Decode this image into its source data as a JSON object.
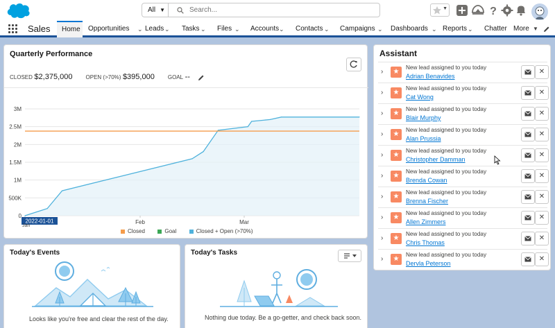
{
  "header": {
    "search_scope": "All",
    "search_placeholder": "Search..."
  },
  "nav": {
    "app_name": "Sales",
    "items": [
      {
        "label": "Home"
      },
      {
        "label": "Opportunities"
      },
      {
        "label": "Leads"
      },
      {
        "label": "Tasks"
      },
      {
        "label": "Files"
      },
      {
        "label": "Accounts"
      },
      {
        "label": "Contacts"
      },
      {
        "label": "Campaigns"
      },
      {
        "label": "Dashboards"
      },
      {
        "label": "Reports"
      },
      {
        "label": "Chatter"
      },
      {
        "label": "More"
      }
    ]
  },
  "performance": {
    "title": "Quarterly Performance",
    "closed_label": "CLOSED",
    "closed_value": "$2,375,000",
    "open_label": "OPEN (>70%)",
    "open_value": "$395,000",
    "goal_label": "GOAL",
    "goal_value": "--",
    "tooltip_date": "2022-01-01",
    "legend": [
      "Closed",
      "Goal",
      "Closed + Open (>70%)"
    ]
  },
  "chart_data": {
    "type": "line",
    "y_tick_labels": [
      "0",
      "500K",
      "1M",
      "1.5M",
      "2M",
      "2.5M",
      "3M"
    ],
    "y_ticks": [
      0,
      500000,
      1000000,
      1500000,
      2000000,
      2500000,
      3000000
    ],
    "ylim": [
      0,
      3000000
    ],
    "x_tick_labels": [
      "Jan",
      "Feb",
      "Mar"
    ],
    "x_range_days": [
      0,
      90
    ],
    "x_tick_days": [
      0,
      31,
      59
    ],
    "series": [
      {
        "name": "Closed",
        "color": "#f59c4a",
        "points": [
          [
            0,
            2375000
          ],
          [
            90,
            2375000
          ]
        ]
      },
      {
        "name": "Closed + Open (>70%)",
        "color": "#4fb2dc",
        "points": [
          [
            0,
            0
          ],
          [
            3,
            100000
          ],
          [
            6,
            200000
          ],
          [
            10,
            700000
          ],
          [
            45,
            1600000
          ],
          [
            48,
            1800000
          ],
          [
            52,
            2400000
          ],
          [
            60,
            2500000
          ],
          [
            61,
            2650000
          ],
          [
            66,
            2700000
          ],
          [
            69,
            2770000
          ],
          [
            90,
            2770000
          ]
        ]
      }
    ],
    "goal": "--",
    "colors": {
      "closed": "#f59c4a",
      "goal": "#3ba755",
      "closed_open": "#4fb2dc"
    }
  },
  "assistant": {
    "title": "Assistant",
    "notification_text": "New lead assigned to you today",
    "leads": [
      "Adrian Benavides",
      "Cat Wong",
      "Blair Murphy",
      "Alan Prussia",
      "Christopher Damman",
      "Brenda Cowan",
      "Brenna Fischer",
      "Allen Zimmers",
      "Chris Thomas",
      "Dervla Peterson"
    ]
  },
  "events": {
    "title": "Today's Events",
    "empty_text": "Looks like you're free and clear the rest of the day."
  },
  "tasks": {
    "title": "Today's Tasks",
    "empty_text": "Nothing due today. Be a go-getter, and check back soon."
  }
}
